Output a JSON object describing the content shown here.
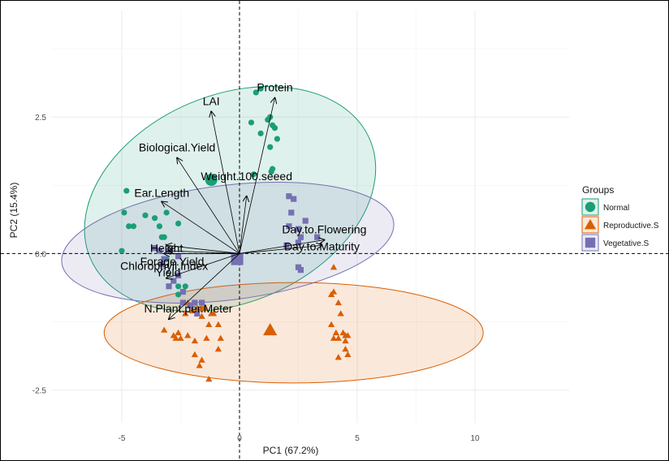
{
  "chart_data": {
    "type": "scatter",
    "title": "",
    "xlabel": "PC1 (67.2%)",
    "ylabel": "PC2 (15.4%)",
    "xlim": [
      -8.0,
      14.0
    ],
    "ylim": [
      -3.1,
      4.45
    ],
    "x_ticks": [
      -5,
      0,
      5,
      10
    ],
    "y_ticks": [
      -2.5,
      0.0,
      2.5
    ],
    "x_tick_labels": [
      "-5",
      "0",
      "5",
      "10"
    ],
    "y_tick_labels": [
      "-2.5",
      "0.0",
      "2.5"
    ],
    "grid": true,
    "reference_lines": {
      "x": 0,
      "y": 0,
      "style": "dashed"
    },
    "legend": {
      "title": "Groups",
      "placement": "right",
      "entries": [
        "Normal",
        "Reproductive.S",
        "Vegetative.S"
      ]
    },
    "series": [
      {
        "name": "Normal",
        "color": "#1b9e77",
        "marker": "circle",
        "ellipse": {
          "center": [
            -0.4,
            1.0
          ],
          "radius_x": 6.45,
          "radius_y": 1.9,
          "angle_deg": -23
        },
        "centroid": [
          -1.2,
          1.35
        ],
        "points": [
          [
            0.7,
            2.95
          ],
          [
            0.9,
            3.02
          ],
          [
            0.5,
            2.4
          ],
          [
            0.9,
            2.2
          ],
          [
            1.3,
            2.5
          ],
          [
            1.4,
            2.35
          ],
          [
            1.2,
            2.45
          ],
          [
            1.5,
            2.3
          ],
          [
            1.6,
            2.1
          ],
          [
            1.3,
            1.95
          ],
          [
            0.6,
            1.45
          ],
          [
            1.4,
            1.55
          ],
          [
            1.35,
            1.5
          ],
          [
            -4.8,
            1.15
          ],
          [
            -4.9,
            0.75
          ],
          [
            -4.7,
            0.5
          ],
          [
            -4.0,
            0.7
          ],
          [
            -3.6,
            0.65
          ],
          [
            -3.1,
            0.75
          ],
          [
            -2.6,
            0.55
          ],
          [
            -4.5,
            0.5
          ],
          [
            -3.4,
            0.5
          ],
          [
            -5.0,
            0.05
          ],
          [
            -3.3,
            0.3
          ],
          [
            -3.2,
            0.3
          ],
          [
            -3.1,
            -0.1
          ],
          [
            -2.6,
            -0.6
          ],
          [
            -2.6,
            -0.75
          ],
          [
            -2.3,
            -0.6
          ],
          [
            -2.4,
            -0.7
          ]
        ]
      },
      {
        "name": "Reproductive.S",
        "color": "#d95f02",
        "marker": "triangle",
        "ellipse": {
          "center": [
            2.3,
            -1.45
          ],
          "radius_x": 8.05,
          "radius_y": 0.92,
          "angle_deg": 0
        },
        "centroid": [
          1.3,
          -1.4
        ],
        "points": [
          [
            -1.6,
            -1.0
          ],
          [
            -1.1,
            -1.1
          ],
          [
            -1.6,
            -1.15
          ],
          [
            -2.0,
            -1.05
          ],
          [
            -1.3,
            -1.3
          ],
          [
            -0.9,
            -1.3
          ],
          [
            -0.8,
            -1.55
          ],
          [
            -0.9,
            -1.75
          ],
          [
            -2.8,
            -1.5
          ],
          [
            -3.2,
            -1.4
          ],
          [
            -2.6,
            -1.45
          ],
          [
            -2.5,
            -1.55
          ],
          [
            -1.9,
            -1.6
          ],
          [
            -1.4,
            -1.55
          ],
          [
            -1.9,
            -1.85
          ],
          [
            -1.6,
            -1.95
          ],
          [
            -1.7,
            -2.05
          ],
          [
            -1.3,
            -2.3
          ],
          [
            -2.2,
            -1.5
          ],
          [
            -2.7,
            -1.55
          ],
          [
            -2.2,
            -0.9
          ],
          [
            -2.3,
            -1.1
          ],
          [
            -1.8,
            -1.0
          ],
          [
            -1.5,
            -1.0
          ],
          [
            -1.2,
            -1.1
          ],
          [
            4.0,
            -0.7
          ],
          [
            4.2,
            -0.9
          ],
          [
            3.9,
            -0.75
          ],
          [
            4.3,
            -1.1
          ],
          [
            4.5,
            -1.5
          ],
          [
            4.6,
            -1.5
          ],
          [
            4.2,
            -1.55
          ],
          [
            3.9,
            -1.3
          ],
          [
            4.1,
            -1.45
          ],
          [
            4.4,
            -1.45
          ],
          [
            4.5,
            -1.75
          ],
          [
            4.6,
            -1.85
          ],
          [
            4.2,
            -1.9
          ],
          [
            4.0,
            -1.55
          ],
          [
            4.0,
            -0.25
          ],
          [
            4.5,
            -1.6
          ]
        ]
      },
      {
        "name": "Vegetative.S",
        "color": "#7570b3",
        "marker": "square",
        "ellipse": {
          "center": [
            -0.5,
            0.2
          ],
          "radius_x": 7.1,
          "radius_y": 1.05,
          "angle_deg": -7
        },
        "centroid": [
          -0.1,
          -0.1
        ],
        "points": [
          [
            2.1,
            1.05
          ],
          [
            2.3,
            1.0
          ],
          [
            2.2,
            0.75
          ],
          [
            2.8,
            0.6
          ],
          [
            2.5,
            0.45
          ],
          [
            2.6,
            0.3
          ],
          [
            2.5,
            0.2
          ],
          [
            2.1,
            0.5
          ],
          [
            3.3,
            0.3
          ],
          [
            2.6,
            -0.3
          ],
          [
            2.5,
            -0.25
          ],
          [
            2.0,
            0.15
          ],
          [
            -3.2,
            -0.1
          ],
          [
            -3.3,
            -0.2
          ],
          [
            -2.6,
            -0.4
          ],
          [
            -2.8,
            -0.5
          ],
          [
            -3.0,
            -0.6
          ],
          [
            -2.4,
            -0.9
          ],
          [
            -2.1,
            -0.95
          ],
          [
            -1.9,
            -0.9
          ],
          [
            -1.6,
            -0.9
          ],
          [
            -1.8,
            -1.1
          ],
          [
            -2.6,
            -0.05
          ],
          [
            -3.0,
            0.05
          ],
          [
            -3.6,
            0.1
          ],
          [
            -3.4,
            0.05
          ],
          [
            -2.1,
            -0.95
          ],
          [
            -2.4,
            -0.7
          ]
        ]
      }
    ],
    "loadings": [
      {
        "name": "Protein",
        "x": 1.5,
        "y": 2.85
      },
      {
        "name": "LAI",
        "x": -1.2,
        "y": 2.6
      },
      {
        "name": "Biological.Yield",
        "x": -2.65,
        "y": 1.75
      },
      {
        "name": "Ear.Length",
        "x": -3.3,
        "y": 0.95
      },
      {
        "name": "Weight.100.seeed",
        "x": 0.3,
        "y": 1.05
      },
      {
        "name": "Day.to.Flowering",
        "x": 3.6,
        "y": 0.25
      },
      {
        "name": "Day.to.Maturity",
        "x": 3.5,
        "y": 0.15
      },
      {
        "name": "Height",
        "x": -3.1,
        "y": 0.15
      },
      {
        "name": "Forage.Yield",
        "x": -3.0,
        "y": 0.05
      },
      {
        "name": "Chlorophyll.Index",
        "x": -3.2,
        "y": 0.0
      },
      {
        "name": "Yield",
        "x": -3.1,
        "y": -0.45
      },
      {
        "name": "N.Plant.per.Meter",
        "x": -3.0,
        "y": -1.2
      }
    ]
  }
}
